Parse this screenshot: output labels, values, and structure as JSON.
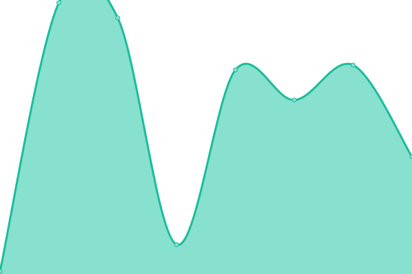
{
  "chart_data": {
    "type": "area",
    "title": "",
    "xlabel": "",
    "ylabel": "",
    "x": [
      0,
      1,
      2,
      3,
      4,
      5,
      6,
      7
    ],
    "series": [
      {
        "values": [
          4,
          396,
          374,
          43,
          298,
          254,
          305,
          171
        ]
      }
    ],
    "ylim": [
      0,
      400
    ],
    "grid": false,
    "axes_visible": false,
    "curve": "smooth",
    "colors": {
      "line": "#1abc9c",
      "fill": "#88e0ce",
      "point_fill": "#88e0ce"
    }
  }
}
